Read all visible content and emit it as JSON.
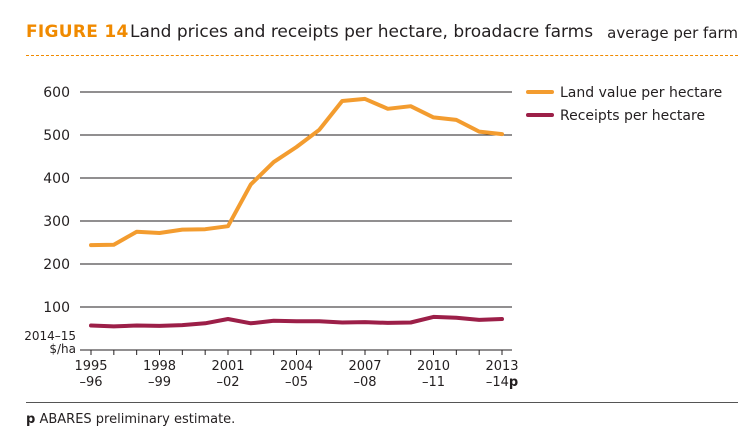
{
  "header": {
    "figure_number": "FIGURE 14",
    "title": "Land prices and receipts per hectare, broadacre farms",
    "subtitle": "average per farm"
  },
  "footnote": {
    "marker": "p",
    "text": "ABARES preliminary estimate."
  },
  "chart_data": {
    "type": "line",
    "title": "Land prices and receipts per hectare, broadacre farms",
    "subtitle": "average per farm",
    "ylabel": "2014–15 $/ha",
    "ylabel_lines": [
      "2014–15",
      "$/ha"
    ],
    "ylim": [
      0,
      600
    ],
    "yticks": [
      100,
      200,
      300,
      400,
      500,
      600
    ],
    "grid": true,
    "legend_position": "top-right",
    "x": [
      "1995–96",
      "1996–97",
      "1997–98",
      "1998–99",
      "1999–00",
      "2000–01",
      "2001–02",
      "2002–03",
      "2003–04",
      "2004–05",
      "2005–06",
      "2006–07",
      "2007–08",
      "2008–09",
      "2009–10",
      "2010–11",
      "2011–12",
      "2012–13",
      "2013–14p"
    ],
    "xtick_labels": [
      {
        "index": 0,
        "top": "1995",
        "bottom": "–96"
      },
      {
        "index": 3,
        "top": "1998",
        "bottom": "–99"
      },
      {
        "index": 6,
        "top": "2001",
        "bottom": "–02"
      },
      {
        "index": 9,
        "top": "2004",
        "bottom": "–05"
      },
      {
        "index": 12,
        "top": "2007",
        "bottom": "–08"
      },
      {
        "index": 15,
        "top": "2010",
        "bottom": "–11"
      },
      {
        "index": 18,
        "top": "2013",
        "bottom": "–14",
        "suffix": "p"
      }
    ],
    "series": [
      {
        "name": "Land value per hectare",
        "color": "#f39c2f",
        "values": [
          244,
          245,
          275,
          272,
          280,
          281,
          288,
          385,
          437,
          472,
          512,
          579,
          584,
          561,
          567,
          541,
          535,
          508,
          502
        ]
      },
      {
        "name": "Receipts per hectare",
        "color": "#9c1f48",
        "values": [
          57,
          55,
          57,
          56,
          58,
          62,
          72,
          62,
          68,
          67,
          67,
          64,
          65,
          63,
          64,
          77,
          75,
          70,
          72
        ]
      }
    ]
  }
}
